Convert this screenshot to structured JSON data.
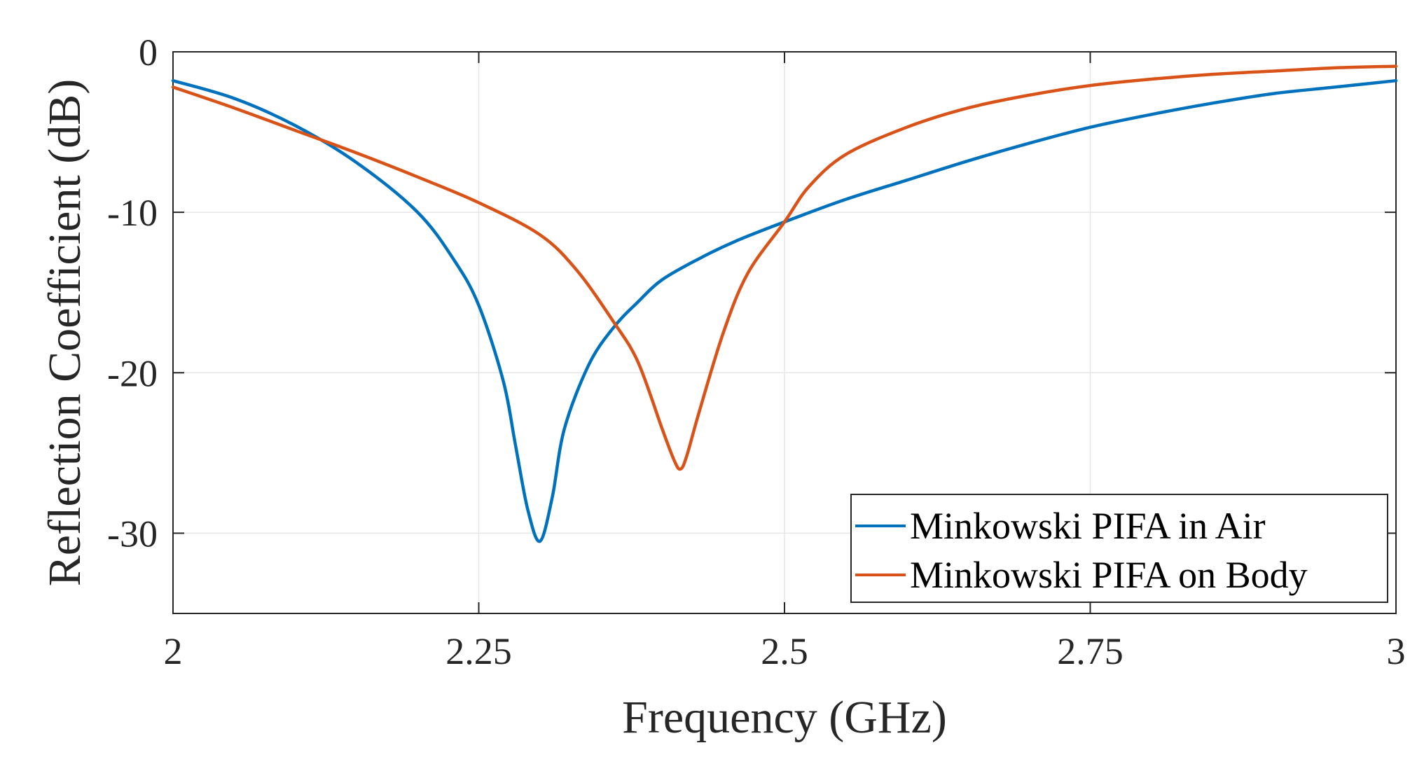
{
  "chart_data": {
    "type": "line",
    "title": "",
    "xlabel": "Frequency (GHz)",
    "ylabel": "Reflection Coefficient (dB)",
    "xlim": [
      2,
      3
    ],
    "ylim": [
      -35,
      0
    ],
    "grid": true,
    "legend_position": "bottom-right",
    "x_ticks": [
      2,
      2.25,
      2.5,
      2.75,
      3
    ],
    "x_tick_labels": [
      "2",
      "2.25",
      "2.5",
      "2.75",
      "3"
    ],
    "y_ticks": [
      0,
      -10,
      -20,
      -30
    ],
    "y_tick_labels": [
      "0",
      "-10",
      "-20",
      "-30"
    ],
    "series": [
      {
        "name": "Minkowski PIFA in Air",
        "color": "#0072BD",
        "points": [
          [
            2.0,
            -1.8
          ],
          [
            2.05,
            -2.9
          ],
          [
            2.1,
            -4.6
          ],
          [
            2.15,
            -6.9
          ],
          [
            2.2,
            -10.0
          ],
          [
            2.23,
            -13.0
          ],
          [
            2.25,
            -15.8
          ],
          [
            2.27,
            -20.5
          ],
          [
            2.28,
            -24.5
          ],
          [
            2.29,
            -28.5
          ],
          [
            2.3,
            -30.5
          ],
          [
            2.31,
            -27.8
          ],
          [
            2.32,
            -23.5
          ],
          [
            2.34,
            -19.5
          ],
          [
            2.36,
            -17.2
          ],
          [
            2.38,
            -15.6
          ],
          [
            2.4,
            -14.2
          ],
          [
            2.43,
            -12.9
          ],
          [
            2.46,
            -11.8
          ],
          [
            2.5,
            -10.6
          ],
          [
            2.55,
            -9.2
          ],
          [
            2.6,
            -8.0
          ],
          [
            2.65,
            -6.8
          ],
          [
            2.7,
            -5.7
          ],
          [
            2.75,
            -4.7
          ],
          [
            2.8,
            -3.9
          ],
          [
            2.85,
            -3.2
          ],
          [
            2.9,
            -2.6
          ],
          [
            2.95,
            -2.2
          ],
          [
            3.0,
            -1.8
          ]
        ]
      },
      {
        "name": "Minkowski PIFA on Body",
        "color": "#D95319",
        "points": [
          [
            2.0,
            -2.2
          ],
          [
            2.05,
            -3.5
          ],
          [
            2.1,
            -4.9
          ],
          [
            2.15,
            -6.3
          ],
          [
            2.2,
            -7.8
          ],
          [
            2.25,
            -9.4
          ],
          [
            2.3,
            -11.4
          ],
          [
            2.33,
            -13.6
          ],
          [
            2.36,
            -16.8
          ],
          [
            2.38,
            -19.3
          ],
          [
            2.4,
            -23.5
          ],
          [
            2.41,
            -25.5
          ],
          [
            2.415,
            -26.0
          ],
          [
            2.42,
            -25.2
          ],
          [
            2.43,
            -22.5
          ],
          [
            2.45,
            -17.5
          ],
          [
            2.47,
            -13.8
          ],
          [
            2.5,
            -10.6
          ],
          [
            2.52,
            -8.4
          ],
          [
            2.55,
            -6.4
          ],
          [
            2.6,
            -4.7
          ],
          [
            2.65,
            -3.5
          ],
          [
            2.7,
            -2.7
          ],
          [
            2.75,
            -2.1
          ],
          [
            2.8,
            -1.7
          ],
          [
            2.85,
            -1.4
          ],
          [
            2.9,
            -1.2
          ],
          [
            2.95,
            -1.0
          ],
          [
            3.0,
            -0.9
          ]
        ]
      }
    ]
  }
}
